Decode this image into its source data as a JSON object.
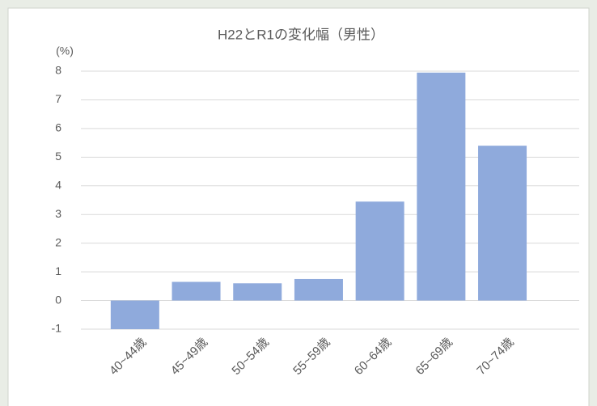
{
  "chart_data": {
    "type": "bar",
    "title": "H22とR1の変化幅（男性）",
    "y_label": "(%)",
    "categories": [
      "40~44歳",
      "45~49歳",
      "50~54歳",
      "55~59歳",
      "60~64歳",
      "65~69歳",
      "70~74歳"
    ],
    "values": [
      -1.0,
      0.65,
      0.6,
      0.75,
      3.45,
      7.95,
      5.4
    ],
    "color": "#8faadc",
    "ylim": [
      -1,
      8
    ],
    "yticks": [
      -1,
      0,
      1,
      2,
      3,
      4,
      5,
      6,
      7,
      8
    ],
    "grid": true
  }
}
